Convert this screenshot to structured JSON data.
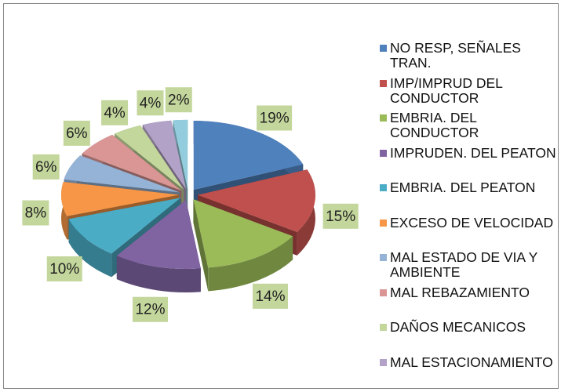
{
  "chart_data": {
    "type": "pie",
    "categories": [
      "NO RESP, SEÑALES TRAN.",
      "IMP/IMPRUD DEL CONDUCTOR",
      "EMBRIA. DEL CONDUCTOR",
      "IMPRUDEN. DEL PEATON",
      "EMBRIA. DEL PEATON",
      "EXCESO DE VELOCIDAD",
      "MAL ESTADO DE VIA Y AMBIENTE",
      "MAL REBAZAMIENTO",
      "DAÑOS MECANICOS",
      "MAL ESTACIONAMIENTO",
      null
    ],
    "values": [
      19,
      15,
      14,
      12,
      10,
      8,
      6,
      6,
      4,
      4,
      2
    ],
    "value_labels": [
      "19%",
      "15%",
      "14%",
      "12%",
      "10%",
      "8%",
      "6%",
      "6%",
      "4%",
      "4%",
      "2%"
    ],
    "colors": [
      "#4f81bd",
      "#c0504d",
      "#9bbb59",
      "#8064a2",
      "#4bacc6",
      "#f79646",
      "#95b3d7",
      "#d99694",
      "#c3d69b",
      "#b3a2c7",
      "#93cddd"
    ],
    "legend": "right"
  }
}
